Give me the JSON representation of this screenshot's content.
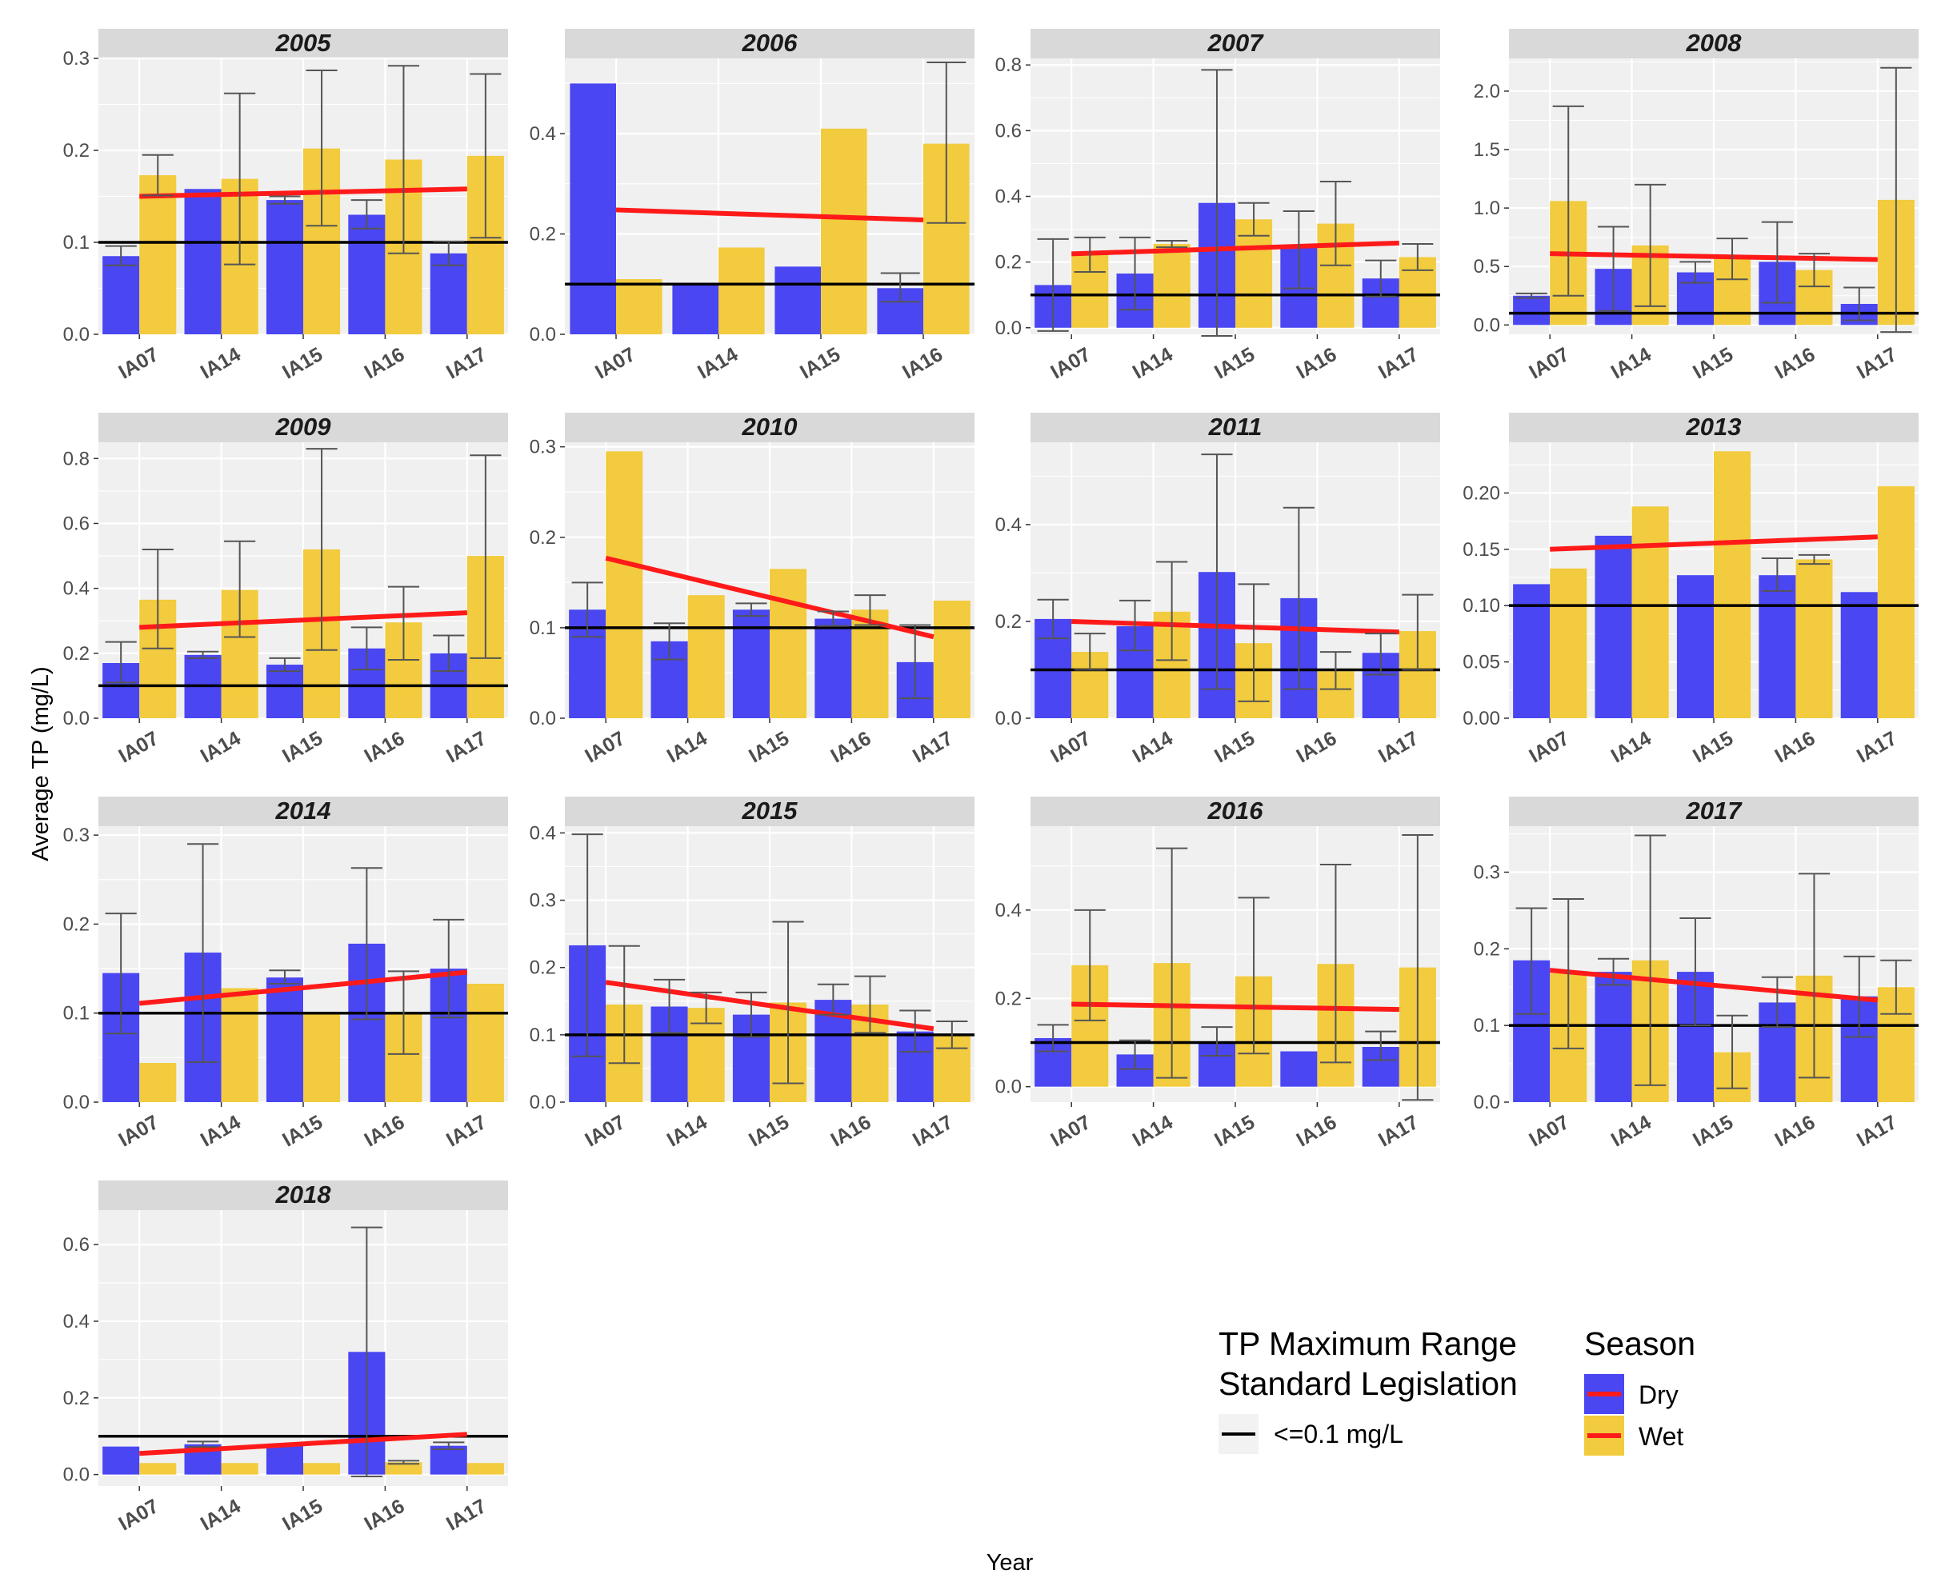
{
  "chart_data": {
    "type": "bar",
    "layout": "faceted",
    "xlabel": "Year",
    "ylabel": "Average TP (mg/L)",
    "reference_line": {
      "value": 0.1,
      "label": "<=0.1 mg/L",
      "color": "#000000"
    },
    "colors": {
      "Dry": "#4A46F2",
      "Wet": "#F2CB3E",
      "trend": "#FF1A1A",
      "errorbar": "#555555"
    },
    "legend": {
      "standard_title_line1": "TP Maximum Range",
      "standard_title_line2": "Standard Legislation",
      "standard_label": "<=0.1 mg/L",
      "season_title": "Season",
      "items": [
        {
          "name": "Dry",
          "color": "#4A46F2"
        },
        {
          "name": "Wet",
          "color": "#F2CB3E"
        }
      ]
    },
    "panels": [
      {
        "title": "2005",
        "ylim": [
          0,
          0.3
        ],
        "yticks": [
          0.0,
          0.1,
          0.2,
          0.3
        ],
        "decimals": 1,
        "categories": [
          "IA07",
          "IA14",
          "IA15",
          "IA16",
          "IA17"
        ],
        "series": [
          {
            "name": "Dry",
            "values": [
              0.085,
              0.158,
              0.146,
              0.13,
              0.088
            ],
            "err_low": [
              0.075,
              null,
              0.142,
              0.115,
              0.075
            ],
            "err_high": [
              0.096,
              null,
              0.15,
              0.146,
              0.101
            ]
          },
          {
            "name": "Wet",
            "values": [
              0.173,
              0.169,
              0.202,
              0.19,
              0.194
            ],
            "err_low": [
              0.151,
              0.076,
              0.118,
              0.088,
              0.105
            ],
            "err_high": [
              0.195,
              0.262,
              0.287,
              0.292,
              0.283
            ]
          }
        ],
        "trend": [
          0.15,
          0.158
        ]
      },
      {
        "title": "2006",
        "ylim": [
          0,
          0.55
        ],
        "yticks": [
          0.0,
          0.2,
          0.4
        ],
        "decimals": 1,
        "categories": [
          "IA07",
          "IA14",
          "IA15",
          "IA16"
        ],
        "series": [
          {
            "name": "Dry",
            "values": [
              0.5,
              0.1,
              0.135,
              0.092
            ],
            "err_low": [
              null,
              null,
              null,
              0.065
            ],
            "err_high": [
              null,
              null,
              null,
              0.122
            ]
          },
          {
            "name": "Wet",
            "values": [
              0.11,
              0.173,
              0.41,
              0.38
            ],
            "err_low": [
              null,
              null,
              null,
              0.222
            ],
            "err_high": [
              null,
              null,
              null,
              0.542
            ]
          }
        ],
        "trend": [
          0.248,
          0.228
        ]
      },
      {
        "title": "2007",
        "ylim": [
          -0.02,
          0.82
        ],
        "yticks": [
          0.0,
          0.2,
          0.4,
          0.6,
          0.8
        ],
        "decimals": 1,
        "categories": [
          "IA07",
          "IA14",
          "IA15",
          "IA16",
          "IA17"
        ],
        "series": [
          {
            "name": "Dry",
            "values": [
              0.13,
              0.165,
              0.38,
              0.245,
              0.15
            ],
            "err_low": [
              -0.01,
              0.055,
              -0.025,
              0.12,
              0.095
            ],
            "err_high": [
              0.27,
              0.275,
              0.785,
              0.355,
              0.205
            ]
          },
          {
            "name": "Wet",
            "values": [
              0.222,
              0.255,
              0.33,
              0.317,
              0.215
            ],
            "err_low": [
              0.17,
              0.245,
              0.28,
              0.19,
              0.175
            ],
            "err_high": [
              0.275,
              0.265,
              0.38,
              0.445,
              0.255
            ]
          }
        ],
        "trend": [
          0.225,
          0.258
        ]
      },
      {
        "title": "2008",
        "ylim": [
          -0.08,
          2.28
        ],
        "yticks": [
          0.0,
          0.5,
          1.0,
          1.5,
          2.0
        ],
        "decimals": 1,
        "categories": [
          "IA07",
          "IA14",
          "IA15",
          "IA16",
          "IA17"
        ],
        "series": [
          {
            "name": "Dry",
            "values": [
              0.25,
              0.48,
              0.45,
              0.54,
              0.18
            ],
            "err_low": [
              0.23,
              0.12,
              0.36,
              0.19,
              0.04
            ],
            "err_high": [
              0.27,
              0.84,
              0.54,
              0.88,
              0.32
            ]
          },
          {
            "name": "Wet",
            "values": [
              1.06,
              0.68,
              0.57,
              0.47,
              1.07
            ],
            "err_low": [
              0.25,
              0.16,
              0.39,
              0.33,
              -0.06
            ],
            "err_high": [
              1.87,
              1.2,
              0.74,
              0.61,
              2.2
            ]
          }
        ],
        "trend": [
          0.61,
          0.56
        ]
      },
      {
        "title": "2009",
        "ylim": [
          0,
          0.85
        ],
        "yticks": [
          0.0,
          0.2,
          0.4,
          0.6,
          0.8
        ],
        "decimals": 1,
        "categories": [
          "IA07",
          "IA14",
          "IA15",
          "IA16",
          "IA17"
        ],
        "series": [
          {
            "name": "Dry",
            "values": [
              0.17,
              0.195,
              0.165,
              0.215,
              0.2
            ],
            "err_low": [
              0.11,
              0.185,
              0.145,
              0.15,
              0.145
            ],
            "err_high": [
              0.235,
              0.205,
              0.185,
              0.28,
              0.255
            ]
          },
          {
            "name": "Wet",
            "values": [
              0.365,
              0.395,
              0.52,
              0.295,
              0.5
            ],
            "err_low": [
              0.215,
              0.25,
              0.21,
              0.18,
              0.185
            ],
            "err_high": [
              0.52,
              0.545,
              0.83,
              0.405,
              0.81
            ]
          }
        ],
        "trend": [
          0.28,
          0.325
        ]
      },
      {
        "title": "2010",
        "ylim": [
          0,
          0.305
        ],
        "yticks": [
          0.0,
          0.1,
          0.2,
          0.3
        ],
        "decimals": 1,
        "categories": [
          "IA07",
          "IA14",
          "IA15",
          "IA16",
          "IA17"
        ],
        "series": [
          {
            "name": "Dry",
            "values": [
              0.12,
              0.085,
              0.12,
              0.11,
              0.062
            ],
            "err_low": [
              0.09,
              0.065,
              0.113,
              0.102,
              0.022
            ],
            "err_high": [
              0.15,
              0.105,
              0.127,
              0.118,
              0.103
            ]
          },
          {
            "name": "Wet",
            "values": [
              0.295,
              0.136,
              0.165,
              0.12,
              0.13
            ],
            "err_low": [
              null,
              null,
              null,
              0.103,
              null
            ],
            "err_high": [
              null,
              null,
              null,
              0.136,
              null
            ]
          }
        ],
        "trend": [
          0.177,
          0.09
        ]
      },
      {
        "title": "2011",
        "ylim": [
          0,
          0.57
        ],
        "yticks": [
          0.0,
          0.2,
          0.4
        ],
        "decimals": 1,
        "categories": [
          "IA07",
          "IA14",
          "IA15",
          "IA16",
          "IA17"
        ],
        "series": [
          {
            "name": "Dry",
            "values": [
              0.205,
              0.19,
              0.302,
              0.248,
              0.135
            ],
            "err_low": [
              0.165,
              0.14,
              0.06,
              0.06,
              0.09
            ],
            "err_high": [
              0.245,
              0.243,
              0.545,
              0.435,
              0.175
            ]
          },
          {
            "name": "Wet",
            "values": [
              0.137,
              0.22,
              0.155,
              0.097,
              0.18
            ],
            "err_low": [
              0.1,
              0.12,
              0.035,
              0.06,
              0.1
            ],
            "err_high": [
              0.175,
              0.323,
              0.277,
              0.137,
              0.255
            ]
          }
        ],
        "trend": [
          0.2,
          0.178
        ]
      },
      {
        "title": "2013",
        "ylim": [
          0,
          0.245
        ],
        "yticks": [
          0.0,
          0.05,
          0.1,
          0.15,
          0.2
        ],
        "decimals": 2,
        "categories": [
          "IA07",
          "IA14",
          "IA15",
          "IA16",
          "IA17"
        ],
        "series": [
          {
            "name": "Dry",
            "values": [
              0.119,
              0.162,
              0.127,
              0.127,
              0.112
            ],
            "err_low": [
              null,
              null,
              null,
              0.113,
              null
            ],
            "err_high": [
              null,
              null,
              null,
              0.142,
              null
            ]
          },
          {
            "name": "Wet",
            "values": [
              0.133,
              0.188,
              0.237,
              0.141,
              0.206
            ],
            "err_low": [
              null,
              null,
              null,
              0.137,
              null
            ],
            "err_high": [
              null,
              null,
              null,
              0.145,
              null
            ]
          }
        ],
        "trend": [
          0.15,
          0.161
        ]
      },
      {
        "title": "2014",
        "ylim": [
          0,
          0.31
        ],
        "yticks": [
          0.0,
          0.1,
          0.2,
          0.3
        ],
        "decimals": 1,
        "categories": [
          "IA07",
          "IA14",
          "IA15",
          "IA16",
          "IA17"
        ],
        "series": [
          {
            "name": "Dry",
            "values": [
              0.145,
              0.168,
              0.14,
              0.178,
              0.15
            ],
            "err_low": [
              0.077,
              0.045,
              0.133,
              0.093,
              0.095
            ],
            "err_high": [
              0.212,
              0.29,
              0.148,
              0.263,
              0.205
            ]
          },
          {
            "name": "Wet",
            "values": [
              0.044,
              0.128,
              0.1,
              0.1,
              0.133
            ],
            "err_low": [
              null,
              null,
              null,
              0.054,
              null
            ],
            "err_high": [
              null,
              null,
              null,
              0.147,
              null
            ]
          }
        ],
        "trend": [
          0.111,
          0.146
        ]
      },
      {
        "title": "2015",
        "ylim": [
          0,
          0.41
        ],
        "yticks": [
          0.0,
          0.1,
          0.2,
          0.3,
          0.4
        ],
        "decimals": 1,
        "categories": [
          "IA07",
          "IA14",
          "IA15",
          "IA16",
          "IA17"
        ],
        "series": [
          {
            "name": "Dry",
            "values": [
              0.233,
              0.142,
              0.13,
              0.152,
              0.105
            ],
            "err_low": [
              0.068,
              0.103,
              0.097,
              0.13,
              0.075
            ],
            "err_high": [
              0.398,
              0.182,
              0.163,
              0.175,
              0.136
            ]
          },
          {
            "name": "Wet",
            "values": [
              0.145,
              0.14,
              0.148,
              0.145,
              0.1
            ],
            "err_low": [
              0.058,
              0.117,
              0.028,
              0.103,
              0.08
            ],
            "err_high": [
              0.232,
              0.163,
              0.268,
              0.187,
              0.12
            ]
          }
        ],
        "trend": [
          0.178,
          0.109
        ]
      },
      {
        "title": "2016",
        "ylim": [
          -0.035,
          0.59
        ],
        "yticks": [
          0.0,
          0.2,
          0.4
        ],
        "decimals": 1,
        "categories": [
          "IA07",
          "IA14",
          "IA15",
          "IA16",
          "IA17"
        ],
        "series": [
          {
            "name": "Dry",
            "values": [
              0.11,
              0.073,
              0.1,
              0.08,
              0.09
            ],
            "err_low": [
              0.08,
              0.04,
              0.07,
              null,
              0.06
            ],
            "err_high": [
              0.14,
              0.105,
              0.135,
              null,
              0.125
            ]
          },
          {
            "name": "Wet",
            "values": [
              0.275,
              0.28,
              0.25,
              0.278,
              0.27
            ],
            "err_low": [
              0.15,
              0.02,
              0.075,
              0.055,
              -0.03
            ],
            "err_high": [
              0.4,
              0.54,
              0.428,
              0.503,
              0.57
            ]
          }
        ],
        "trend": [
          0.187,
          0.175
        ]
      },
      {
        "title": "2017",
        "ylim": [
          0,
          0.36
        ],
        "yticks": [
          0.0,
          0.1,
          0.2,
          0.3
        ],
        "decimals": 1,
        "categories": [
          "IA07",
          "IA14",
          "IA15",
          "IA16",
          "IA17"
        ],
        "series": [
          {
            "name": "Dry",
            "values": [
              0.185,
              0.17,
              0.17,
              0.13,
              0.138
            ],
            "err_low": [
              0.115,
              0.153,
              0.1,
              0.098,
              0.085
            ],
            "err_high": [
              0.253,
              0.187,
              0.24,
              0.163,
              0.19
            ]
          },
          {
            "name": "Wet",
            "values": [
              0.168,
              0.185,
              0.065,
              0.165,
              0.15
            ],
            "err_low": [
              0.07,
              0.022,
              0.018,
              0.032,
              0.115
            ],
            "err_high": [
              0.265,
              0.348,
              0.113,
              0.298,
              0.185
            ]
          }
        ],
        "trend": [
          0.172,
          0.133
        ]
      },
      {
        "title": "2018",
        "ylim": [
          -0.03,
          0.69
        ],
        "yticks": [
          0.0,
          0.2,
          0.4,
          0.6
        ],
        "decimals": 1,
        "categories": [
          "IA07",
          "IA14",
          "IA15",
          "IA16",
          "IA17"
        ],
        "series": [
          {
            "name": "Dry",
            "values": [
              0.073,
              0.079,
              0.075,
              0.32,
              0.075
            ],
            "err_low": [
              null,
              0.072,
              null,
              -0.005,
              0.066
            ],
            "err_high": [
              null,
              0.086,
              null,
              0.645,
              0.084
            ]
          },
          {
            "name": "Wet",
            "values": [
              0.03,
              0.03,
              0.03,
              0.032,
              0.03
            ],
            "err_low": [
              null,
              null,
              null,
              0.028,
              null
            ],
            "err_high": [
              null,
              null,
              null,
              0.036,
              null
            ]
          }
        ],
        "trend": [
          0.055,
          0.105
        ]
      }
    ]
  }
}
